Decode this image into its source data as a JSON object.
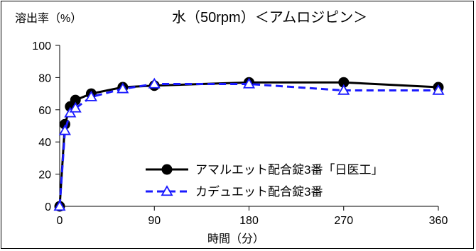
{
  "chart_data": {
    "type": "line",
    "title": "水（50rpm）＜アムロジピン＞",
    "ylabel": "溶出率（%）",
    "xlabel": "時間（分）",
    "xlim": [
      0,
      360
    ],
    "ylim": [
      0,
      100
    ],
    "x_ticks": [
      0,
      90,
      180,
      270,
      360
    ],
    "y_ticks": [
      0,
      20,
      40,
      60,
      80,
      100
    ],
    "grid": false,
    "legend_position": "bottom-right",
    "series": [
      {
        "name": "アマルエット配合錠3番「日医工」",
        "color": "#000000",
        "style": "solid",
        "marker": "filled-circle",
        "x": [
          0,
          5,
          10,
          15,
          30,
          60,
          90,
          180,
          270,
          360
        ],
        "y": [
          0,
          51,
          62,
          66,
          70,
          74,
          75,
          77,
          77,
          74
        ]
      },
      {
        "name": "カデュエット配合錠3番",
        "color": "#1a1aff",
        "style": "dashed",
        "marker": "open-triangle",
        "x": [
          0,
          5,
          10,
          15,
          30,
          60,
          90,
          180,
          270,
          360
        ],
        "y": [
          0,
          47,
          58,
          61,
          68,
          73,
          76,
          76,
          72,
          72
        ]
      }
    ]
  }
}
